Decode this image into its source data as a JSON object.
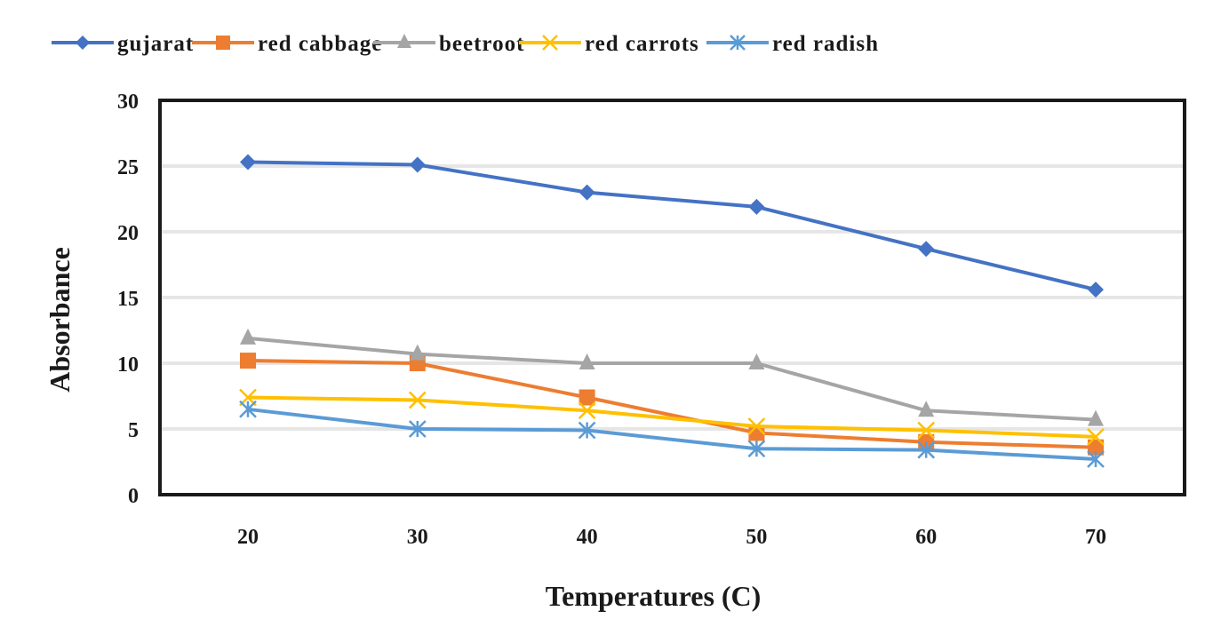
{
  "chart_data": {
    "type": "line",
    "title": "",
    "xlabel": "Temperatures (C)",
    "ylabel": "Absorbance",
    "x": [
      20,
      30,
      40,
      50,
      60,
      70
    ],
    "x_tick_labels": [
      "20",
      "30",
      "40",
      "50",
      "60",
      "70"
    ],
    "ylim": [
      0,
      30
    ],
    "y_ticks": [
      0,
      5,
      10,
      15,
      20,
      25,
      30
    ],
    "y_tick_labels": [
      "0",
      "5",
      "10",
      "15",
      "20",
      "25",
      "30"
    ],
    "grid": "horizontal",
    "legend_position": "top",
    "series": [
      {
        "name": "gujarat",
        "color": "#4472C4",
        "marker": "diamond",
        "values": [
          25.3,
          25.1,
          23.0,
          21.9,
          18.7,
          15.6
        ]
      },
      {
        "name": "red cabbage",
        "color": "#ED7D31",
        "marker": "square",
        "values": [
          10.2,
          10.0,
          7.4,
          4.7,
          4.0,
          3.6
        ]
      },
      {
        "name": "beetroot",
        "color": "#A5A5A5",
        "marker": "triangle",
        "values": [
          11.9,
          10.7,
          10.0,
          10.0,
          6.4,
          5.7
        ]
      },
      {
        "name": "red carrots",
        "color": "#FFC000",
        "marker": "x",
        "values": [
          7.4,
          7.2,
          6.4,
          5.2,
          4.9,
          4.4
        ]
      },
      {
        "name": "red radish",
        "color": "#5B9BD5",
        "marker": "star",
        "values": [
          6.5,
          5.0,
          4.9,
          3.5,
          3.4,
          2.7
        ]
      }
    ]
  }
}
